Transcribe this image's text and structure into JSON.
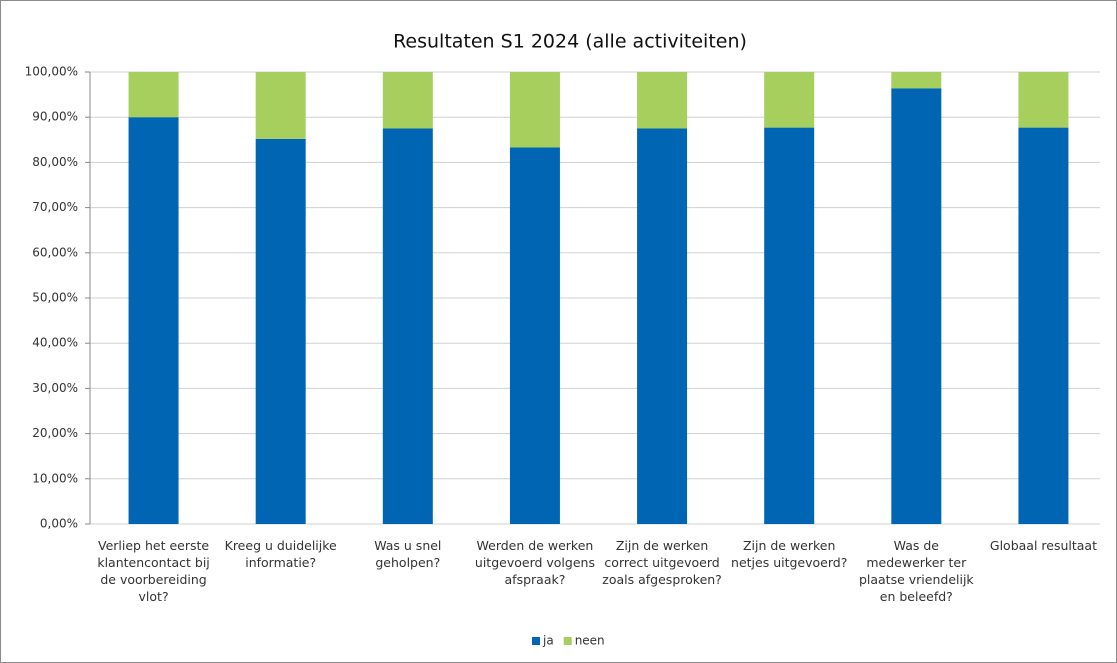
{
  "chart_data": {
    "type": "stacked_bar",
    "title": "Resultaten S1 2024 (alle activiteiten)",
    "categories": [
      "Verliep het eerste klantencontact bij de voorbereiding vlot?",
      "Kreeg u duidelijke informatie?",
      "Was u snel geholpen?",
      "Werden de werken uitgevoerd volgens afspraak?",
      "Zijn de werken correct uitgevoerd zoals afgesproken?",
      "Zijn de werken netjes uitgevoerd?",
      "Was de medewerker ter plaatse vriendelijk en beleefd?",
      "Globaal resultaat"
    ],
    "series": [
      {
        "name": "ja",
        "color": "#0066b3",
        "values": [
          90.0,
          85.2,
          87.5,
          83.3,
          87.5,
          87.7,
          96.4,
          87.7
        ]
      },
      {
        "name": "neen",
        "color": "#a6cf5d",
        "values": [
          10.0,
          14.8,
          12.5,
          16.7,
          12.5,
          12.3,
          3.6,
          12.3
        ]
      }
    ],
    "ylim": [
      0,
      100
    ],
    "yticks": [
      {
        "value": 0,
        "label": "0,00%"
      },
      {
        "value": 10,
        "label": "10,00%"
      },
      {
        "value": 20,
        "label": "20,00%"
      },
      {
        "value": 30,
        "label": "30,00%"
      },
      {
        "value": 40,
        "label": "40,00%"
      },
      {
        "value": 50,
        "label": "50,00%"
      },
      {
        "value": 60,
        "label": "60,00%"
      },
      {
        "value": 70,
        "label": "70,00%"
      },
      {
        "value": 80,
        "label": "80,00%"
      },
      {
        "value": 90,
        "label": "90,00%"
      },
      {
        "value": 100,
        "label": "100,00%"
      }
    ],
    "grid": true,
    "legend": "bottom"
  }
}
